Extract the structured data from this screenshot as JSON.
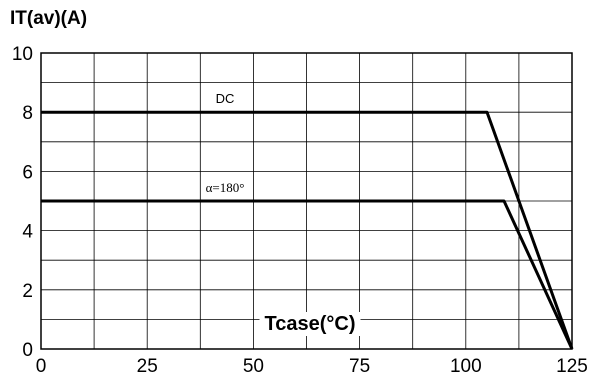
{
  "chart_data": {
    "type": "line",
    "ylabel": "IT(av)(A)",
    "xlabel": "Tcase(°C)",
    "xlim": [
      0,
      125
    ],
    "ylim": [
      0,
      10
    ],
    "x_ticks": [
      0,
      25,
      50,
      75,
      100,
      125
    ],
    "y_ticks": [
      0,
      2,
      4,
      6,
      8,
      10
    ],
    "grid": true,
    "series": [
      {
        "name": "DC",
        "x": [
          0,
          105,
          125
        ],
        "y": [
          8,
          8,
          0
        ]
      },
      {
        "name": "α=180°",
        "x": [
          0,
          109,
          125
        ],
        "y": [
          5,
          5,
          0
        ]
      }
    ]
  }
}
